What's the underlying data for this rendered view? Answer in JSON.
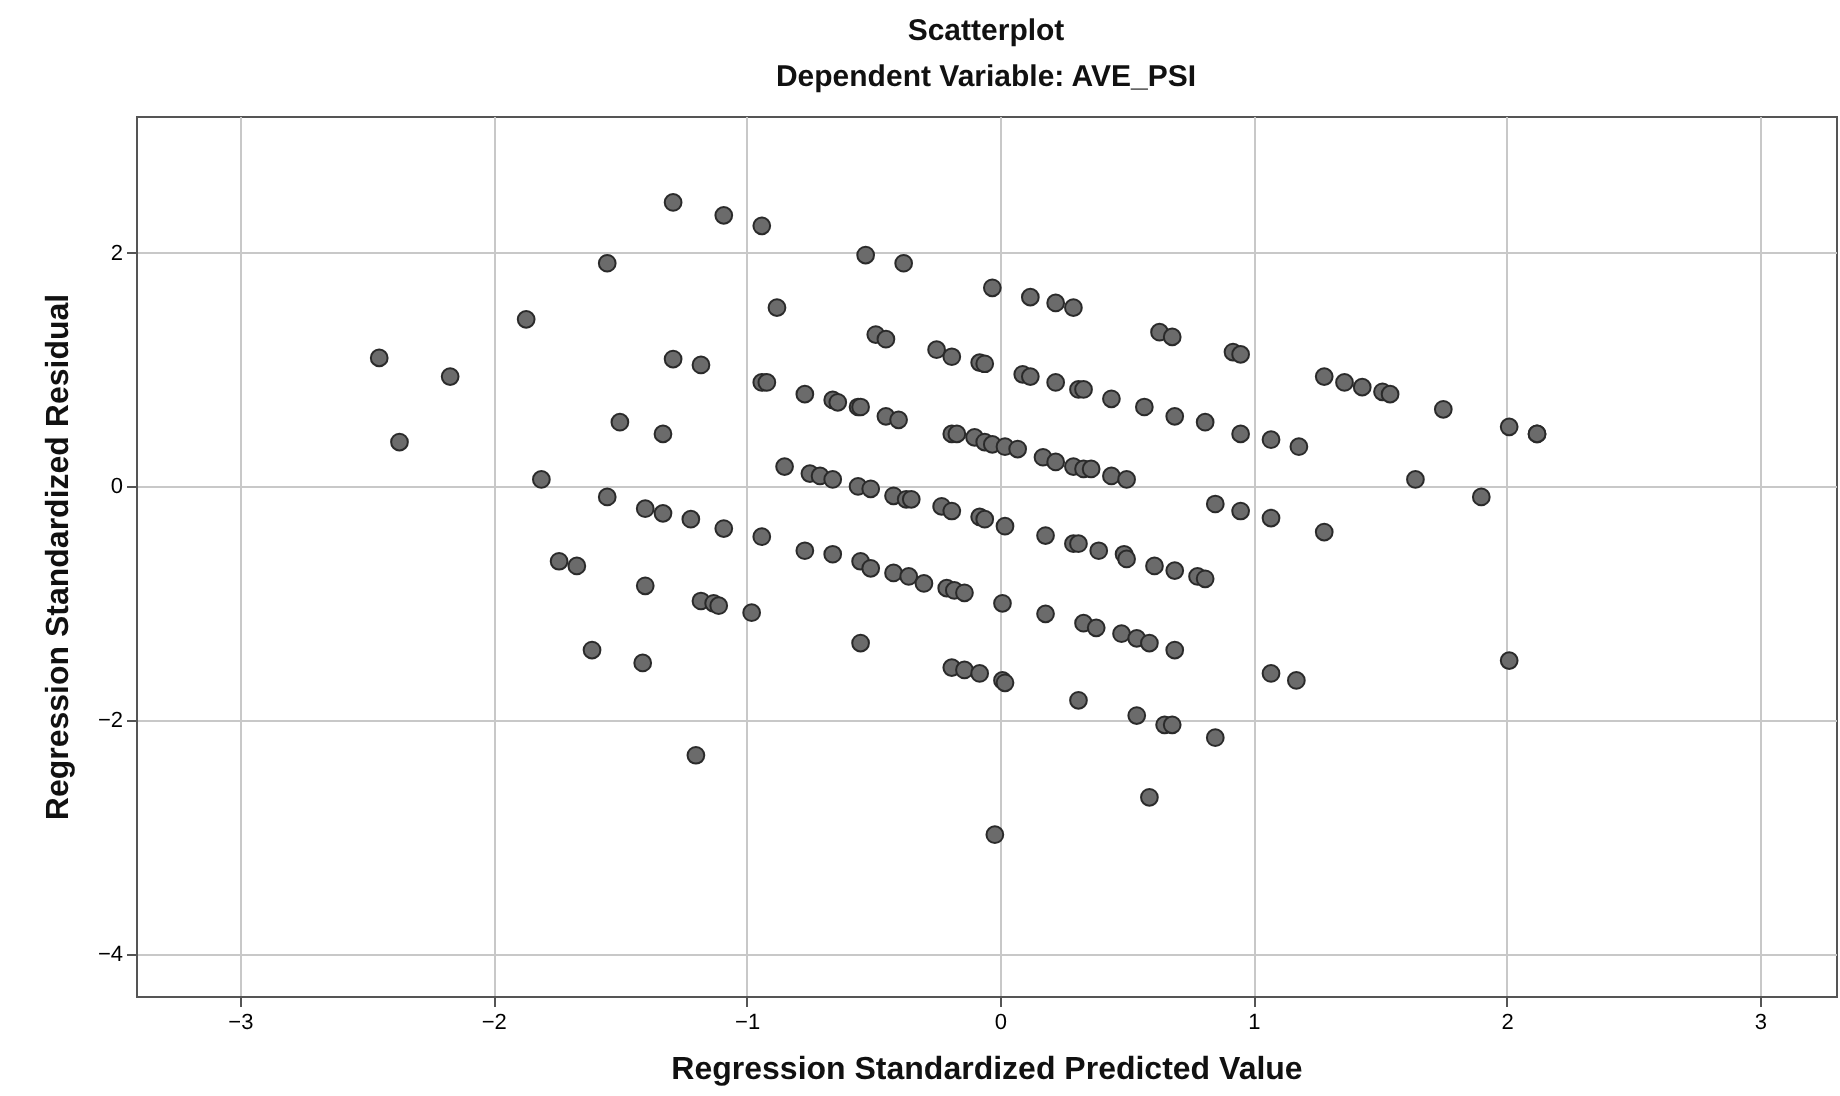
{
  "chart_data": {
    "type": "scatter",
    "title": "Scatterplot",
    "subtitle": "Dependent Variable: AVE_PSI",
    "xlabel": "Regression Standardized Predicted Value",
    "ylabel": "Regression Standardized Residual",
    "xlim": [
      -3.41,
      3.3
    ],
    "ylim": [
      -4.36,
      3.17
    ],
    "xticks": [
      -3,
      -2,
      -1,
      0,
      1,
      2,
      3
    ],
    "yticks": [
      -4,
      -2,
      0,
      2
    ],
    "grid": true,
    "marker": "circle",
    "series": [
      {
        "color": "#6b6b6b",
        "x": [
          -2.45,
          -2.37,
          -2.17,
          -1.87,
          -1.81,
          -1.74,
          -1.67,
          -1.61,
          -1.55,
          -1.55,
          -1.5,
          -1.41,
          -1.4,
          -1.4,
          -1.33,
          -1.33,
          -1.29,
          -1.29,
          -1.22,
          -1.2,
          -1.18,
          -1.18,
          -1.13,
          -1.11,
          -1.09,
          -1.09,
          -0.98,
          -0.94,
          -0.94,
          -0.92,
          -0.94,
          -0.88,
          -0.85,
          -0.77,
          -0.77,
          -0.75,
          -0.71,
          -0.66,
          -0.64,
          -0.66,
          -0.66,
          -0.56,
          -0.55,
          -0.56,
          -0.51,
          -0.55,
          -0.51,
          -0.55,
          -0.53,
          -0.49,
          -0.45,
          -0.45,
          -0.4,
          -0.42,
          -0.37,
          -0.35,
          -0.42,
          -0.36,
          -0.38,
          -0.3,
          -0.25,
          -0.19,
          -0.19,
          -0.17,
          -0.23,
          -0.19,
          -0.21,
          -0.18,
          -0.14,
          -0.19,
          -0.14,
          -0.1,
          -0.08,
          -0.06,
          -0.06,
          -0.03,
          -0.08,
          -0.06,
          -0.08,
          -0.03,
          -0.02,
          0.01,
          0.01,
          0.02,
          0.02,
          0.07,
          0.02,
          0.09,
          0.12,
          0.12,
          0.17,
          0.18,
          0.18,
          0.22,
          0.22,
          0.22,
          0.29,
          0.29,
          0.29,
          0.31,
          0.31,
          0.31,
          0.33,
          0.33,
          0.36,
          0.33,
          0.38,
          0.39,
          0.44,
          0.44,
          0.48,
          0.49,
          0.5,
          0.5,
          0.54,
          0.54,
          0.57,
          0.59,
          0.59,
          0.61,
          0.63,
          0.65,
          0.68,
          0.68,
          0.69,
          0.69,
          0.69,
          0.78,
          0.81,
          0.81,
          0.85,
          0.85,
          0.92,
          0.95,
          0.95,
          0.95,
          1.07,
          1.07,
          1.07,
          1.17,
          1.18,
          1.28,
          1.28,
          1.36,
          1.43,
          1.51,
          1.54,
          1.64,
          1.75,
          1.9,
          2.01,
          2.01,
          2.12,
          2.12
        ],
        "values": [
          1.1,
          0.38,
          0.94,
          1.43,
          0.06,
          -0.64,
          -0.68,
          -1.4,
          1.91,
          -0.09,
          0.55,
          -1.51,
          -0.19,
          -0.85,
          -0.23,
          0.45,
          2.43,
          1.09,
          -0.28,
          -2.3,
          1.04,
          -0.98,
          -1.0,
          -1.02,
          2.32,
          -0.36,
          -1.08,
          2.23,
          0.89,
          0.89,
          -0.43,
          1.53,
          0.17,
          0.79,
          -0.55,
          0.11,
          0.09,
          0.74,
          0.72,
          0.06,
          -0.58,
          0.68,
          0.68,
          0,
          -0.02,
          -0.64,
          -0.7,
          -1.34,
          1.98,
          1.3,
          1.26,
          0.6,
          0.57,
          -0.08,
          -0.11,
          -0.11,
          -0.74,
          -0.77,
          1.91,
          -0.83,
          1.17,
          1.11,
          0.45,
          0.45,
          -0.17,
          -0.21,
          -0.87,
          -0.89,
          -0.91,
          -1.55,
          -1.57,
          0.42,
          1.06,
          1.05,
          0.38,
          0.36,
          -0.26,
          -0.28,
          -1.6,
          1.7,
          -2.98,
          -1.0,
          -1.66,
          -1.68,
          0.34,
          0.32,
          -0.34,
          0.96,
          0.94,
          1.62,
          0.25,
          -0.42,
          -1.09,
          1.57,
          0.89,
          0.21,
          1.53,
          0.17,
          -0.49,
          -0.49,
          -1.83,
          0.83,
          0.83,
          0.15,
          0.15,
          -1.17,
          -1.21,
          -0.55,
          0.75,
          0.09,
          -1.26,
          -0.58,
          0.06,
          -0.62,
          -1.3,
          -1.96,
          0.68,
          -1.34,
          -2.66,
          -0.68,
          1.32,
          -2.04,
          -2.04,
          1.28,
          0.6,
          -0.72,
          -1.4,
          -0.77,
          -0.79,
          0.55,
          -0.15,
          -2.15,
          1.15,
          1.13,
          0.45,
          -0.21,
          0.4,
          -0.27,
          -1.6,
          -1.66,
          0.34,
          0.94,
          -0.39,
          0.89,
          0.85,
          0.81,
          0.79,
          0.06,
          0.66,
          -0.09,
          0.51,
          -1.49,
          0.45,
          0.45
        ]
      }
    ]
  }
}
